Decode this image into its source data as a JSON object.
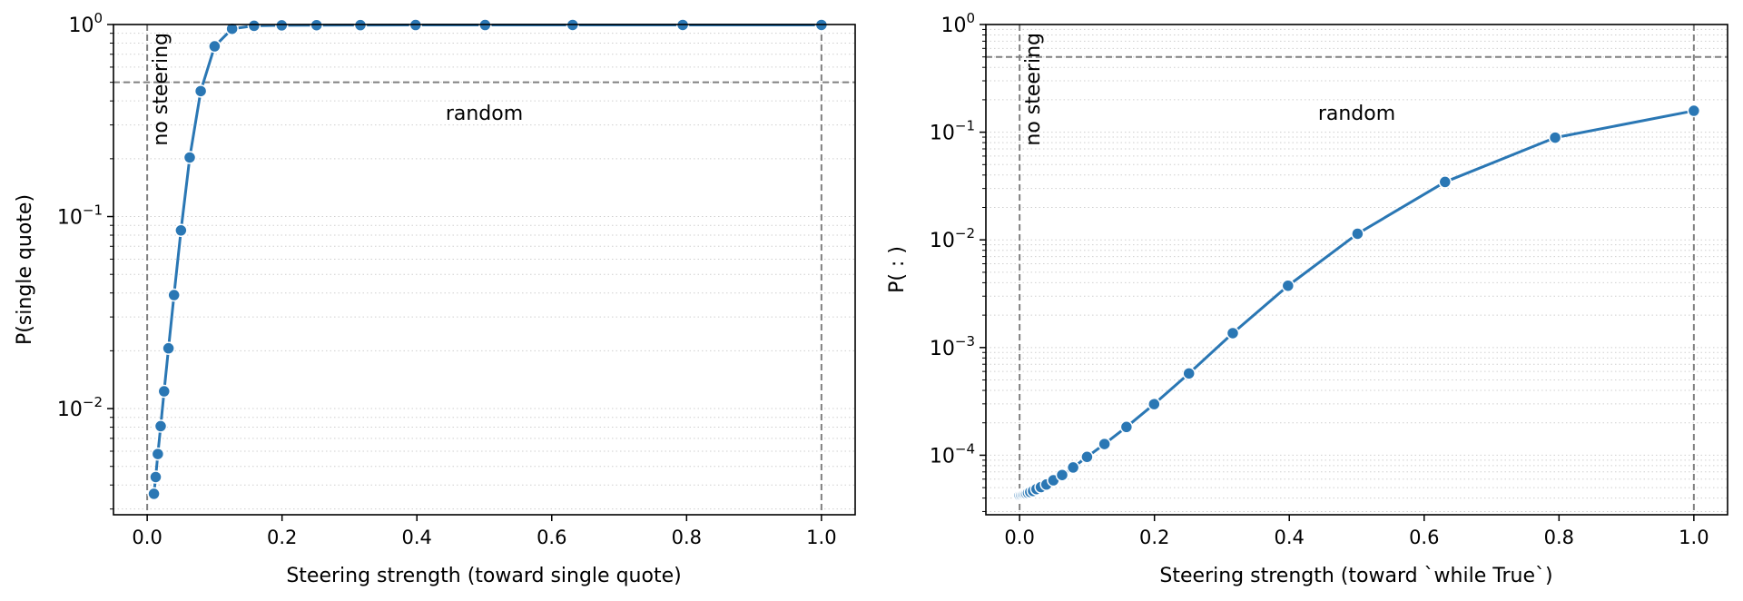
{
  "chart_data": [
    {
      "type": "line",
      "title": "",
      "xlabel": "Steering strength (toward single quote)",
      "ylabel": "P(single quote)",
      "yscale": "log",
      "xlim": [
        -0.05,
        1.05
      ],
      "ylim": [
        0.0028,
        1.0
      ],
      "xticks": [
        0.0,
        0.2,
        0.4,
        0.6,
        0.8,
        1.0
      ],
      "xtick_labels": [
        "0.0",
        "0.2",
        "0.4",
        "0.6",
        "0.8",
        "1.0"
      ],
      "yticks": [
        0.01,
        0.1,
        1.0
      ],
      "ytick_labels": [
        {
          "base": "10",
          "exp": "−2"
        },
        {
          "base": "10",
          "exp": "−1"
        },
        {
          "base": "10",
          "exp": "0"
        }
      ],
      "grid": "minor horizontal dotted",
      "reference_lines": {
        "h": 0.5,
        "v": [
          0.0,
          1.0
        ],
        "h_label": "random",
        "v_label": "no steering"
      },
      "line_color": "#2a77b4",
      "series": [
        {
          "x": [
            0.01,
            0.0126,
            0.0158,
            0.02,
            0.0251,
            0.0316,
            0.0398,
            0.0501,
            0.0631,
            0.0794,
            0.1,
            0.1259,
            0.1585,
            0.1995,
            0.2512,
            0.3162,
            0.3981,
            0.5012,
            0.631,
            0.7943,
            1.0
          ],
          "y": [
            0.0036,
            0.0044,
            0.0058,
            0.0081,
            0.0123,
            0.0206,
            0.039,
            0.0847,
            0.203,
            0.45,
            0.77,
            0.95,
            0.985,
            0.99,
            0.992,
            0.993,
            0.994,
            0.994,
            0.995,
            0.995,
            0.995
          ]
        }
      ]
    },
    {
      "type": "line",
      "title": "",
      "xlabel": "Steering strength (toward `while True`)",
      "ylabel": "P( : )",
      "yscale": "log",
      "xlim": [
        -0.05,
        1.05
      ],
      "ylim": [
        2.8e-05,
        1.0
      ],
      "xticks": [
        0.0,
        0.2,
        0.4,
        0.6,
        0.8,
        1.0
      ],
      "xtick_labels": [
        "0.0",
        "0.2",
        "0.4",
        "0.6",
        "0.8",
        "1.0"
      ],
      "yticks": [
        0.0001,
        0.001,
        0.01,
        0.1,
        1.0
      ],
      "ytick_labels": [
        {
          "base": "10",
          "exp": "−4"
        },
        {
          "base": "10",
          "exp": "−3"
        },
        {
          "base": "10",
          "exp": "−2"
        },
        {
          "base": "10",
          "exp": "−1"
        },
        {
          "base": "10",
          "exp": "0"
        }
      ],
      "grid": "minor horizontal dotted",
      "reference_lines": {
        "h": 0.5,
        "v": [
          0.0,
          1.0
        ],
        "h_label": "random",
        "v_label": "no steering"
      },
      "line_color": "#2a77b4",
      "series": [
        {
          "x": [
            0.0,
            0.0025,
            0.005,
            0.0075,
            0.01,
            0.0126,
            0.0158,
            0.02,
            0.0251,
            0.0316,
            0.0398,
            0.0501,
            0.0631,
            0.0794,
            0.1,
            0.1259,
            0.1585,
            0.1995,
            0.2512,
            0.3162,
            0.3981,
            0.5012,
            0.631,
            0.7943,
            1.0
          ],
          "y": [
            4.25e-05,
            4.28e-05,
            4.32e-05,
            4.36e-05,
            4.4e-05,
            4.47e-05,
            4.55e-05,
            4.66e-05,
            4.85e-05,
            5.06e-05,
            5.35e-05,
            5.85e-05,
            6.55e-05,
            7.7e-05,
            9.65e-05,
            0.000127,
            0.000183,
            0.000298,
            0.000575,
            0.00136,
            0.00375,
            0.0114,
            0.0345,
            0.089,
            0.158
          ]
        }
      ]
    }
  ]
}
